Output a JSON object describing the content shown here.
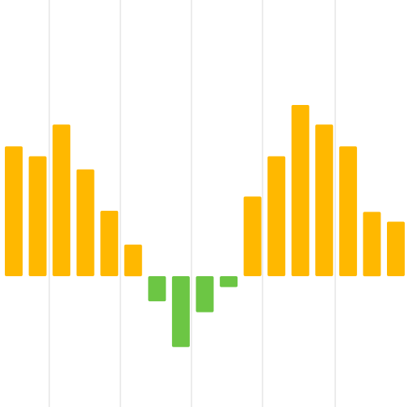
{
  "chart_data": {
    "type": "bar",
    "title": "",
    "xlabel": "",
    "ylabel": "",
    "grid": "vertical",
    "legend": "none",
    "baseline": 0,
    "ylim": [
      -100,
      240
    ],
    "series": [
      {
        "name": "",
        "values": [
          119,
          110,
          139,
          98,
          60,
          29,
          -23,
          -65,
          -33,
          -10,
          73,
          110,
          157,
          139,
          119,
          59,
          50
        ]
      }
    ],
    "colors": {
      "positive": "#FFB800",
      "negative": "#6CC644",
      "grid": "#E6E6E6",
      "background": "#FFFFFF"
    }
  }
}
